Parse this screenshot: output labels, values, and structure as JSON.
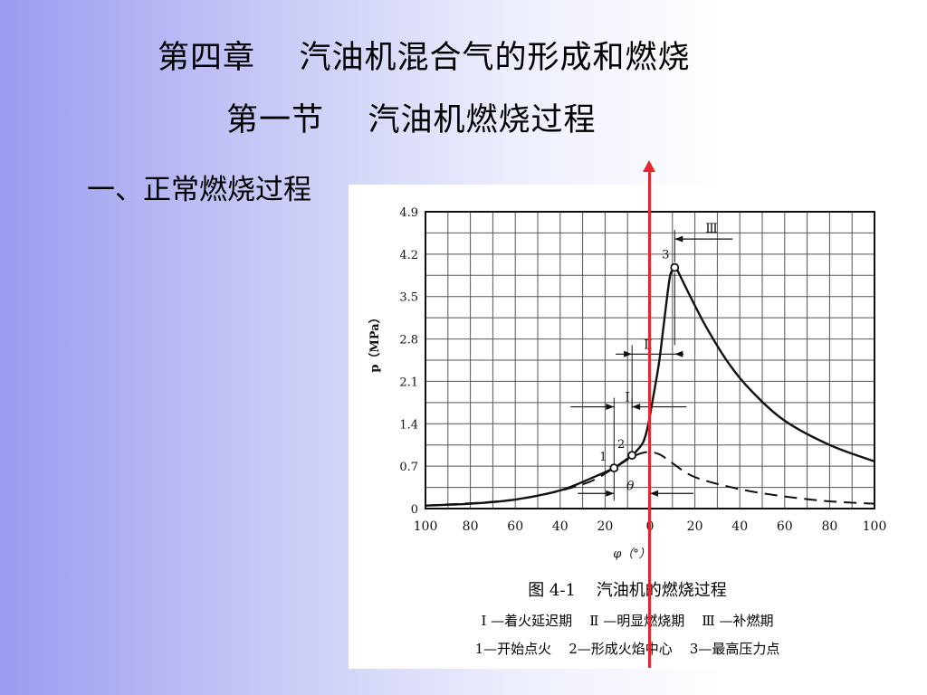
{
  "slide": {
    "chapter_title": "第四章    汽油机混合气的形成和燃烧",
    "section_title": "第一节    汽油机燃烧过程",
    "subheading": "一、正常燃烧过程"
  },
  "figure": {
    "caption_title": "图 4-1    汽油机的燃烧过程",
    "legend_line1": "Ⅰ —着火延迟期    Ⅱ —明显燃烧期    Ⅲ —补燃期",
    "legend_line2": "1—开始点火    2—形成火焰中心    3—最高压力点",
    "phase_labels": [
      "Ⅰ",
      "Ⅱ",
      "Ⅲ",
      "θ"
    ],
    "point_labels": [
      "1",
      "2",
      "3"
    ]
  },
  "chart_data": {
    "type": "line",
    "xlabel": "φ（°）",
    "ylabel": "p（MPa）",
    "x_tick_labels": [
      "100",
      "80",
      "60",
      "40",
      "20",
      "0",
      "20",
      "40",
      "60",
      "80",
      "100"
    ],
    "y_tick_labels": [
      "0",
      "0.7",
      "1.4",
      "2.1",
      "2.8",
      "3.5",
      "4.2",
      "4.9"
    ],
    "xlim": [
      -100,
      100
    ],
    "ylim": [
      0,
      4.9
    ],
    "grid": true,
    "series": [
      {
        "style": "solid",
        "x": [
          -100,
          -80,
          -60,
          -40,
          -25,
          -16,
          -14,
          -8,
          -6,
          -3,
          -1,
          1,
          4,
          6,
          8,
          9,
          10,
          11,
          12,
          14,
          18,
          25,
          35,
          45,
          60,
          80,
          100
        ],
        "y": [
          0.05,
          0.08,
          0.15,
          0.3,
          0.52,
          0.67,
          0.72,
          0.88,
          0.95,
          1.1,
          1.35,
          1.75,
          2.4,
          3.0,
          3.6,
          3.85,
          3.94,
          3.98,
          3.95,
          3.8,
          3.5,
          3.0,
          2.4,
          1.95,
          1.45,
          1.05,
          0.78
        ]
      },
      {
        "style": "dashed",
        "x": [
          -100,
          -60,
          -30,
          -16,
          -8,
          -2,
          4,
          10,
          20,
          40,
          60,
          80,
          100
        ],
        "y": [
          0.05,
          0.15,
          0.4,
          0.67,
          0.85,
          0.93,
          0.9,
          0.75,
          0.52,
          0.32,
          0.2,
          0.12,
          0.08
        ]
      }
    ],
    "points": [
      {
        "label": "1",
        "x": -16,
        "y": 0.67
      },
      {
        "label": "2",
        "x": -8,
        "y": 0.88
      },
      {
        "label": "3",
        "x": 11,
        "y": 3.98
      }
    ]
  },
  "colors": {
    "marker": "#e8242c",
    "gradient_left": "#9a9cf0",
    "ink": "#111111"
  }
}
